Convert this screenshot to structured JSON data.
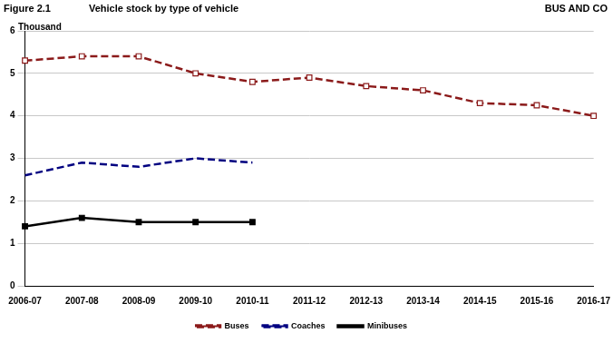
{
  "chart_data": {
    "type": "line",
    "title": "Vehicle stock by type of vehicle",
    "annotations": [
      "Figure 2.1",
      "BUS AND CO"
    ],
    "y_label": "Thousand",
    "categories": [
      "2006-07",
      "2007-08",
      "2008-09",
      "2009-10",
      "2010-11",
      "2011-12",
      "2012-13",
      "2013-14",
      "2014-15",
      "2015-16",
      "2016-17"
    ],
    "series": [
      {
        "name": "Buses",
        "color": "#8b1a1a",
        "marker": "square_open",
        "line_style": "dashed",
        "values": [
          5.3,
          5.4,
          5.4,
          5.0,
          4.8,
          4.9,
          4.7,
          4.6,
          4.3,
          4.25,
          4.0
        ]
      },
      {
        "name": "Coaches",
        "color": "#000080",
        "marker": "none",
        "line_style": "dashed",
        "values": [
          2.6,
          2.9,
          2.8,
          3.0,
          2.9,
          null,
          null,
          null,
          null,
          null,
          null
        ]
      },
      {
        "name": "Minibuses",
        "color": "#000000",
        "marker": "square",
        "line_style": "solid",
        "values": [
          1.4,
          1.6,
          1.5,
          1.5,
          1.5,
          null,
          null,
          null,
          null,
          null,
          null
        ]
      }
    ],
    "ylim": [
      0,
      6
    ],
    "yticks": [
      0,
      1,
      2,
      3,
      4,
      5,
      6
    ],
    "grid": true,
    "legend": "bottom"
  }
}
